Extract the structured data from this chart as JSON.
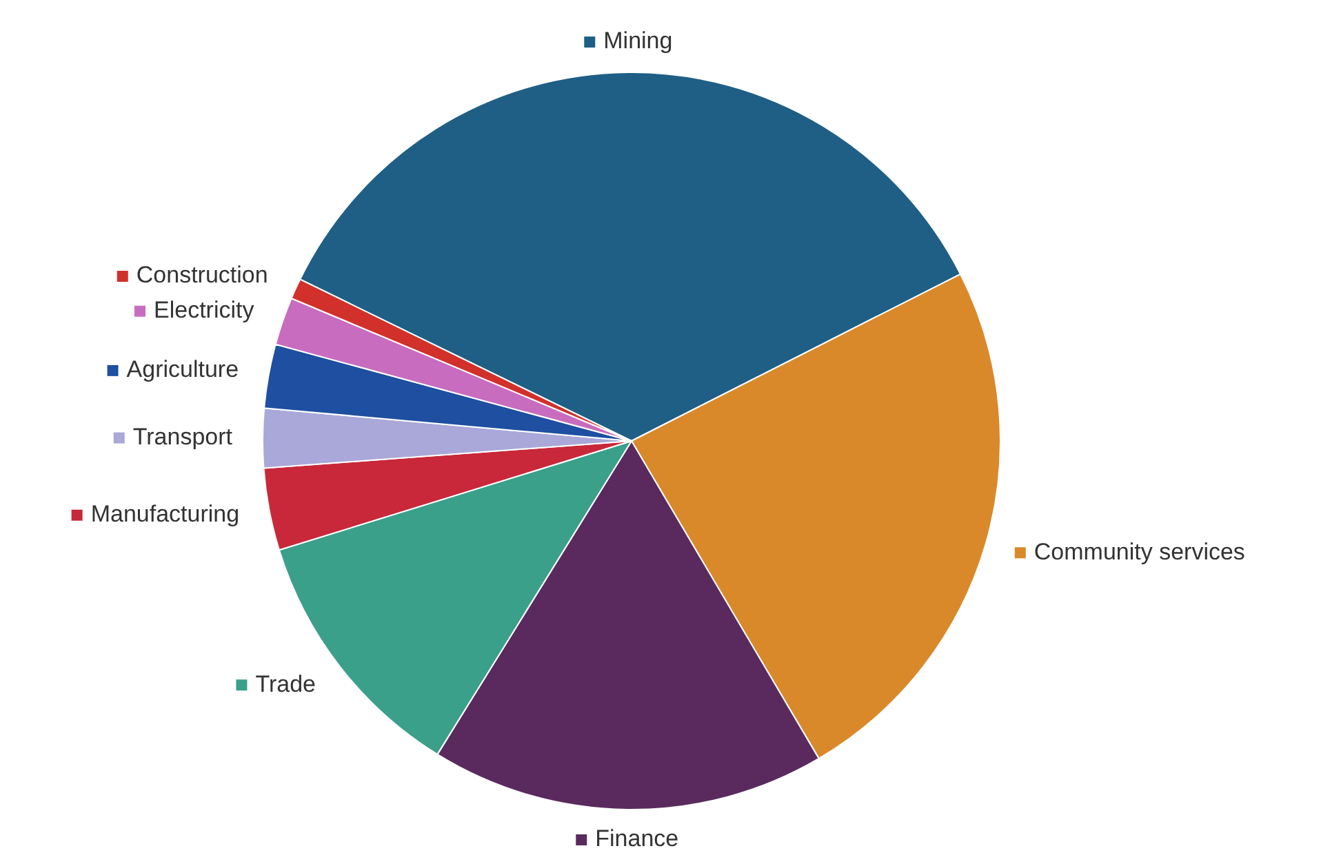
{
  "chart_data": {
    "type": "pie",
    "categories": [
      "Mining",
      "Community services",
      "Finance",
      "Trade",
      "Manufacturing",
      "Transport",
      "Agriculture",
      "Electricity",
      "Construction"
    ],
    "values": [
      35.3,
      24.0,
      17.3,
      11.4,
      3.6,
      2.6,
      2.8,
      2.1,
      0.9
    ],
    "colors": [
      "#1f5f86",
      "#d9892a",
      "#5a2a5e",
      "#3aa08a",
      "#c8283a",
      "#a9a8d8",
      "#1e4fa0",
      "#c86cbf",
      "#d2302a"
    ],
    "legend": "right"
  }
}
